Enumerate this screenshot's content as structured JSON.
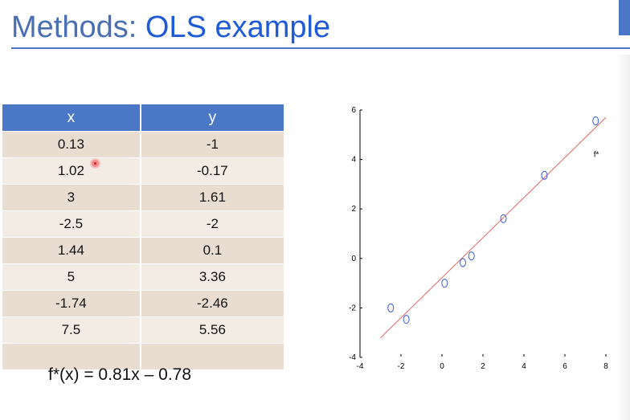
{
  "slide": {
    "title_prefix": "Methods: ",
    "title_main": "OLS example",
    "equation": "f*(x) = 0.81x – 0.78"
  },
  "table": {
    "columns": [
      "x",
      "y"
    ],
    "rows": [
      [
        "0.13",
        "-1"
      ],
      [
        "1.02",
        "-0.17"
      ],
      [
        "3",
        "1.61"
      ],
      [
        "-2.5",
        "-2"
      ],
      [
        "1.44",
        "0.1"
      ],
      [
        "5",
        "3.36"
      ],
      [
        "-1.74",
        "-2.46"
      ],
      [
        "7.5",
        "5.56"
      ],
      [
        "",
        ""
      ]
    ]
  },
  "chart_data": {
    "type": "scatter",
    "title": "",
    "xlabel": "",
    "ylabel": "",
    "xlim": [
      -4,
      8
    ],
    "ylim": [
      -4,
      6
    ],
    "xticks": [
      -4,
      -2,
      0,
      2,
      4,
      6,
      8
    ],
    "yticks": [
      -4,
      -2,
      0,
      2,
      4,
      6
    ],
    "grid": false,
    "series": [
      {
        "type": "scatter",
        "color": "#3a5bd9",
        "marker": "open-ellipse",
        "points": [
          {
            "x": 0.13,
            "y": -1
          },
          {
            "x": 1.02,
            "y": -0.17
          },
          {
            "x": 3,
            "y": 1.61
          },
          {
            "x": -2.5,
            "y": -2
          },
          {
            "x": 1.44,
            "y": 0.1
          },
          {
            "x": 5,
            "y": 3.36
          },
          {
            "x": -1.74,
            "y": -2.46
          },
          {
            "x": 7.5,
            "y": 5.56
          }
        ]
      },
      {
        "type": "line",
        "name": "f*",
        "color": "#e06666",
        "slope": 0.81,
        "intercept": -0.78,
        "x_range": [
          -3,
          8
        ]
      }
    ],
    "annotations": [
      {
        "text": "f*",
        "x": 7.4,
        "y": 4.1
      }
    ]
  }
}
